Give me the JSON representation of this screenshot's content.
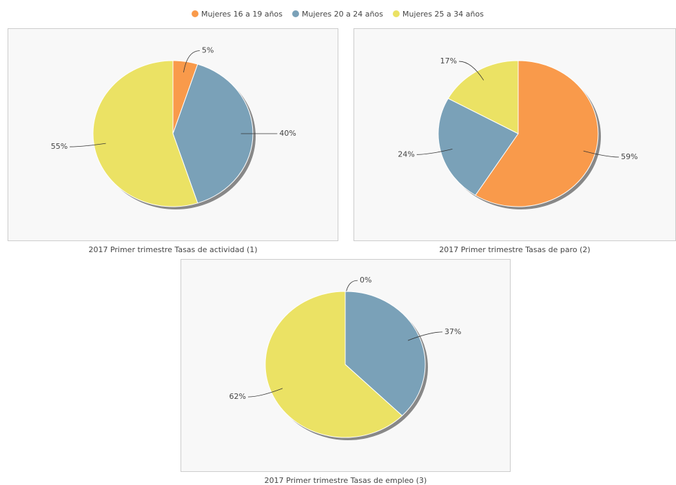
{
  "chart_data": [
    {
      "type": "pie",
      "title": "2017 Primer trimestre Tasas de actividad (1)",
      "categories": [
        "Mujeres 16 a 19 años",
        "Mujeres 20 a 24 años",
        "Mujeres 25 a 34 años"
      ],
      "values": [
        5,
        40,
        55
      ],
      "value_labels": [
        "5%",
        "40%",
        "55%"
      ],
      "colors": [
        "#f99a4b",
        "#7aa1b8",
        "#ebe264"
      ]
    },
    {
      "type": "pie",
      "title": "2017 Primer trimestre Tasas de paro (2)",
      "categories": [
        "Mujeres 16 a 19 años",
        "Mujeres 20 a 24 años",
        "Mujeres 25 a 34 años"
      ],
      "values": [
        59,
        24,
        17
      ],
      "value_labels": [
        "59%",
        "24%",
        "17%"
      ],
      "colors": [
        "#f99a4b",
        "#7aa1b8",
        "#ebe264"
      ]
    },
    {
      "type": "pie",
      "title": "2017 Primer trimestre Tasas de empleo (3)",
      "categories": [
        "Mujeres 16 a 19 años",
        "Mujeres 20 a 24 años",
        "Mujeres 25 a 34 años"
      ],
      "values": [
        0,
        37,
        62
      ],
      "value_labels": [
        "0%",
        "37%",
        "62%"
      ],
      "colors": [
        "#f99a4b",
        "#7aa1b8",
        "#ebe264"
      ]
    }
  ]
}
